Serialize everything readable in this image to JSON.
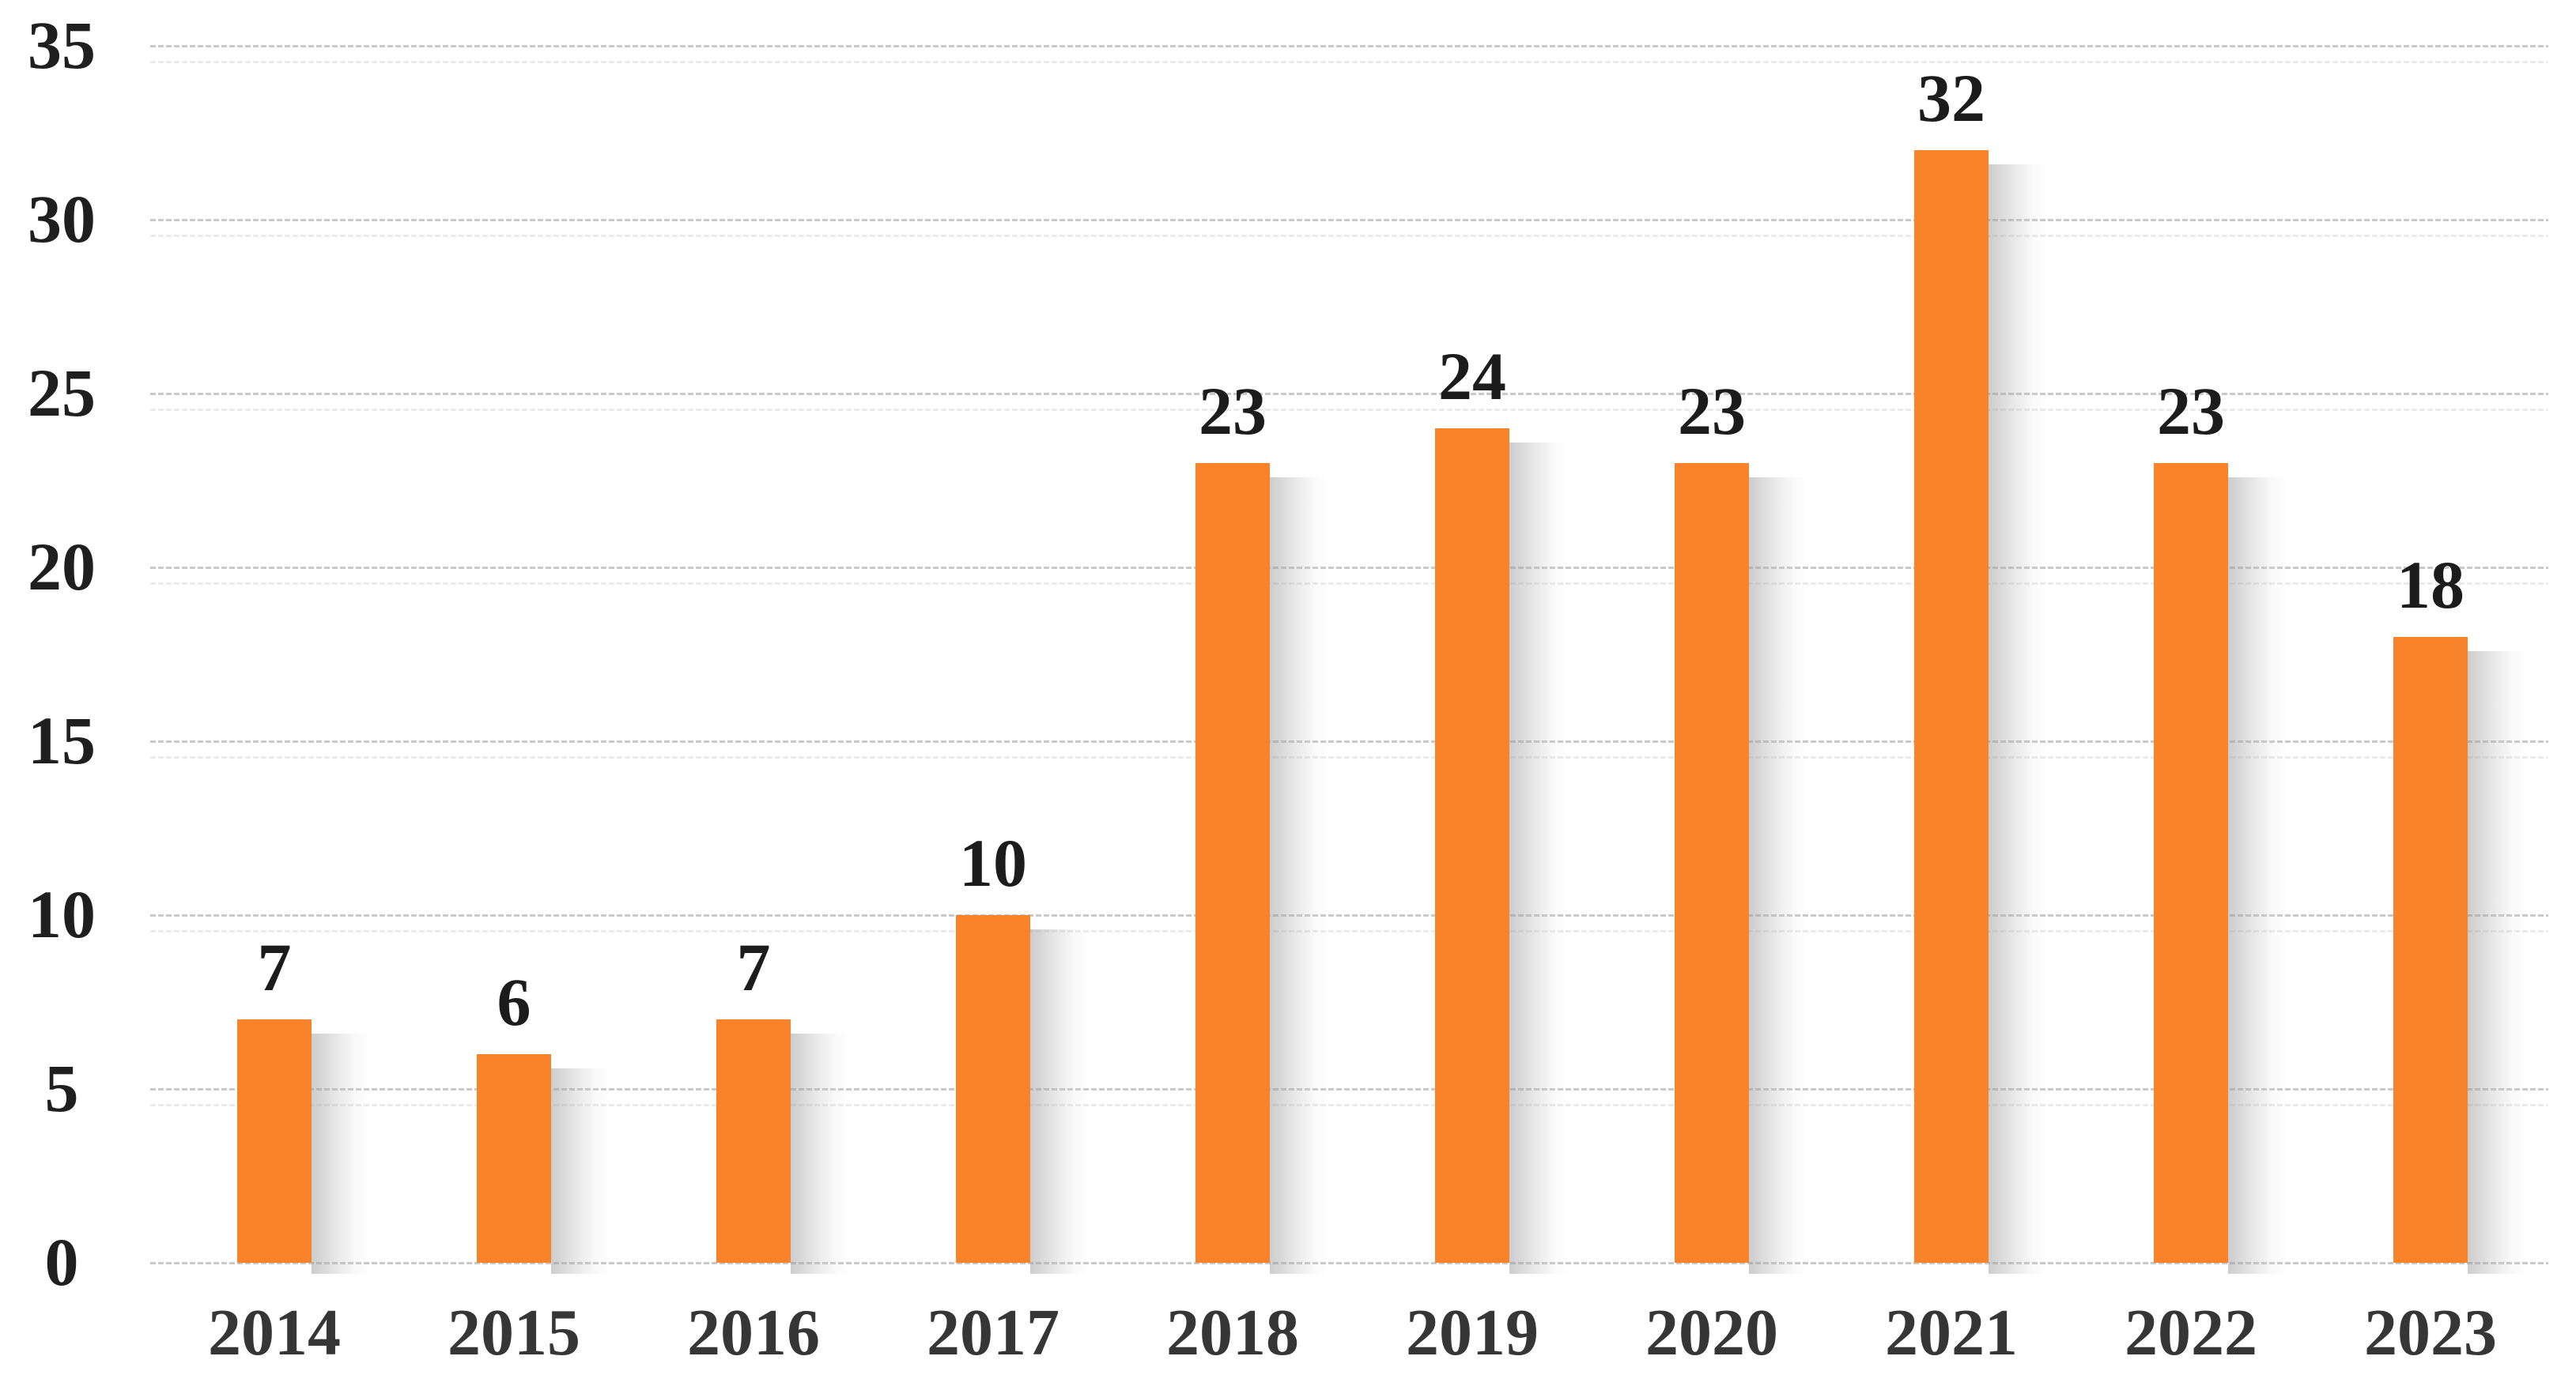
{
  "chart_data": {
    "type": "bar",
    "title": "",
    "xlabel": "",
    "ylabel": "",
    "categories": [
      "2014",
      "2015",
      "2016",
      "2017",
      "2018",
      "2019",
      "2020",
      "2021",
      "2022",
      "2023"
    ],
    "values": [
      7,
      6,
      7,
      10,
      23,
      24,
      23,
      32,
      23,
      18
    ],
    "data_labels": [
      "7",
      "6",
      "7",
      "10",
      "23",
      "24",
      "23",
      "32",
      "23",
      "18"
    ],
    "ylim": [
      0,
      35
    ],
    "yticks": [
      0,
      5,
      10,
      15,
      20,
      25,
      30,
      35
    ],
    "grid": true,
    "gridline_style": "dashed",
    "legend": false,
    "colors": {
      "bar": "#F8832B",
      "bar_shadow": "#9B9B9B",
      "gridline": "#C9C9C9",
      "gridline_echo": "#EBEBEB",
      "tick_label": "#1F1F1F",
      "data_label": "#1C1C1C",
      "category_label": "#363636",
      "background": "#FFFFFF"
    }
  }
}
